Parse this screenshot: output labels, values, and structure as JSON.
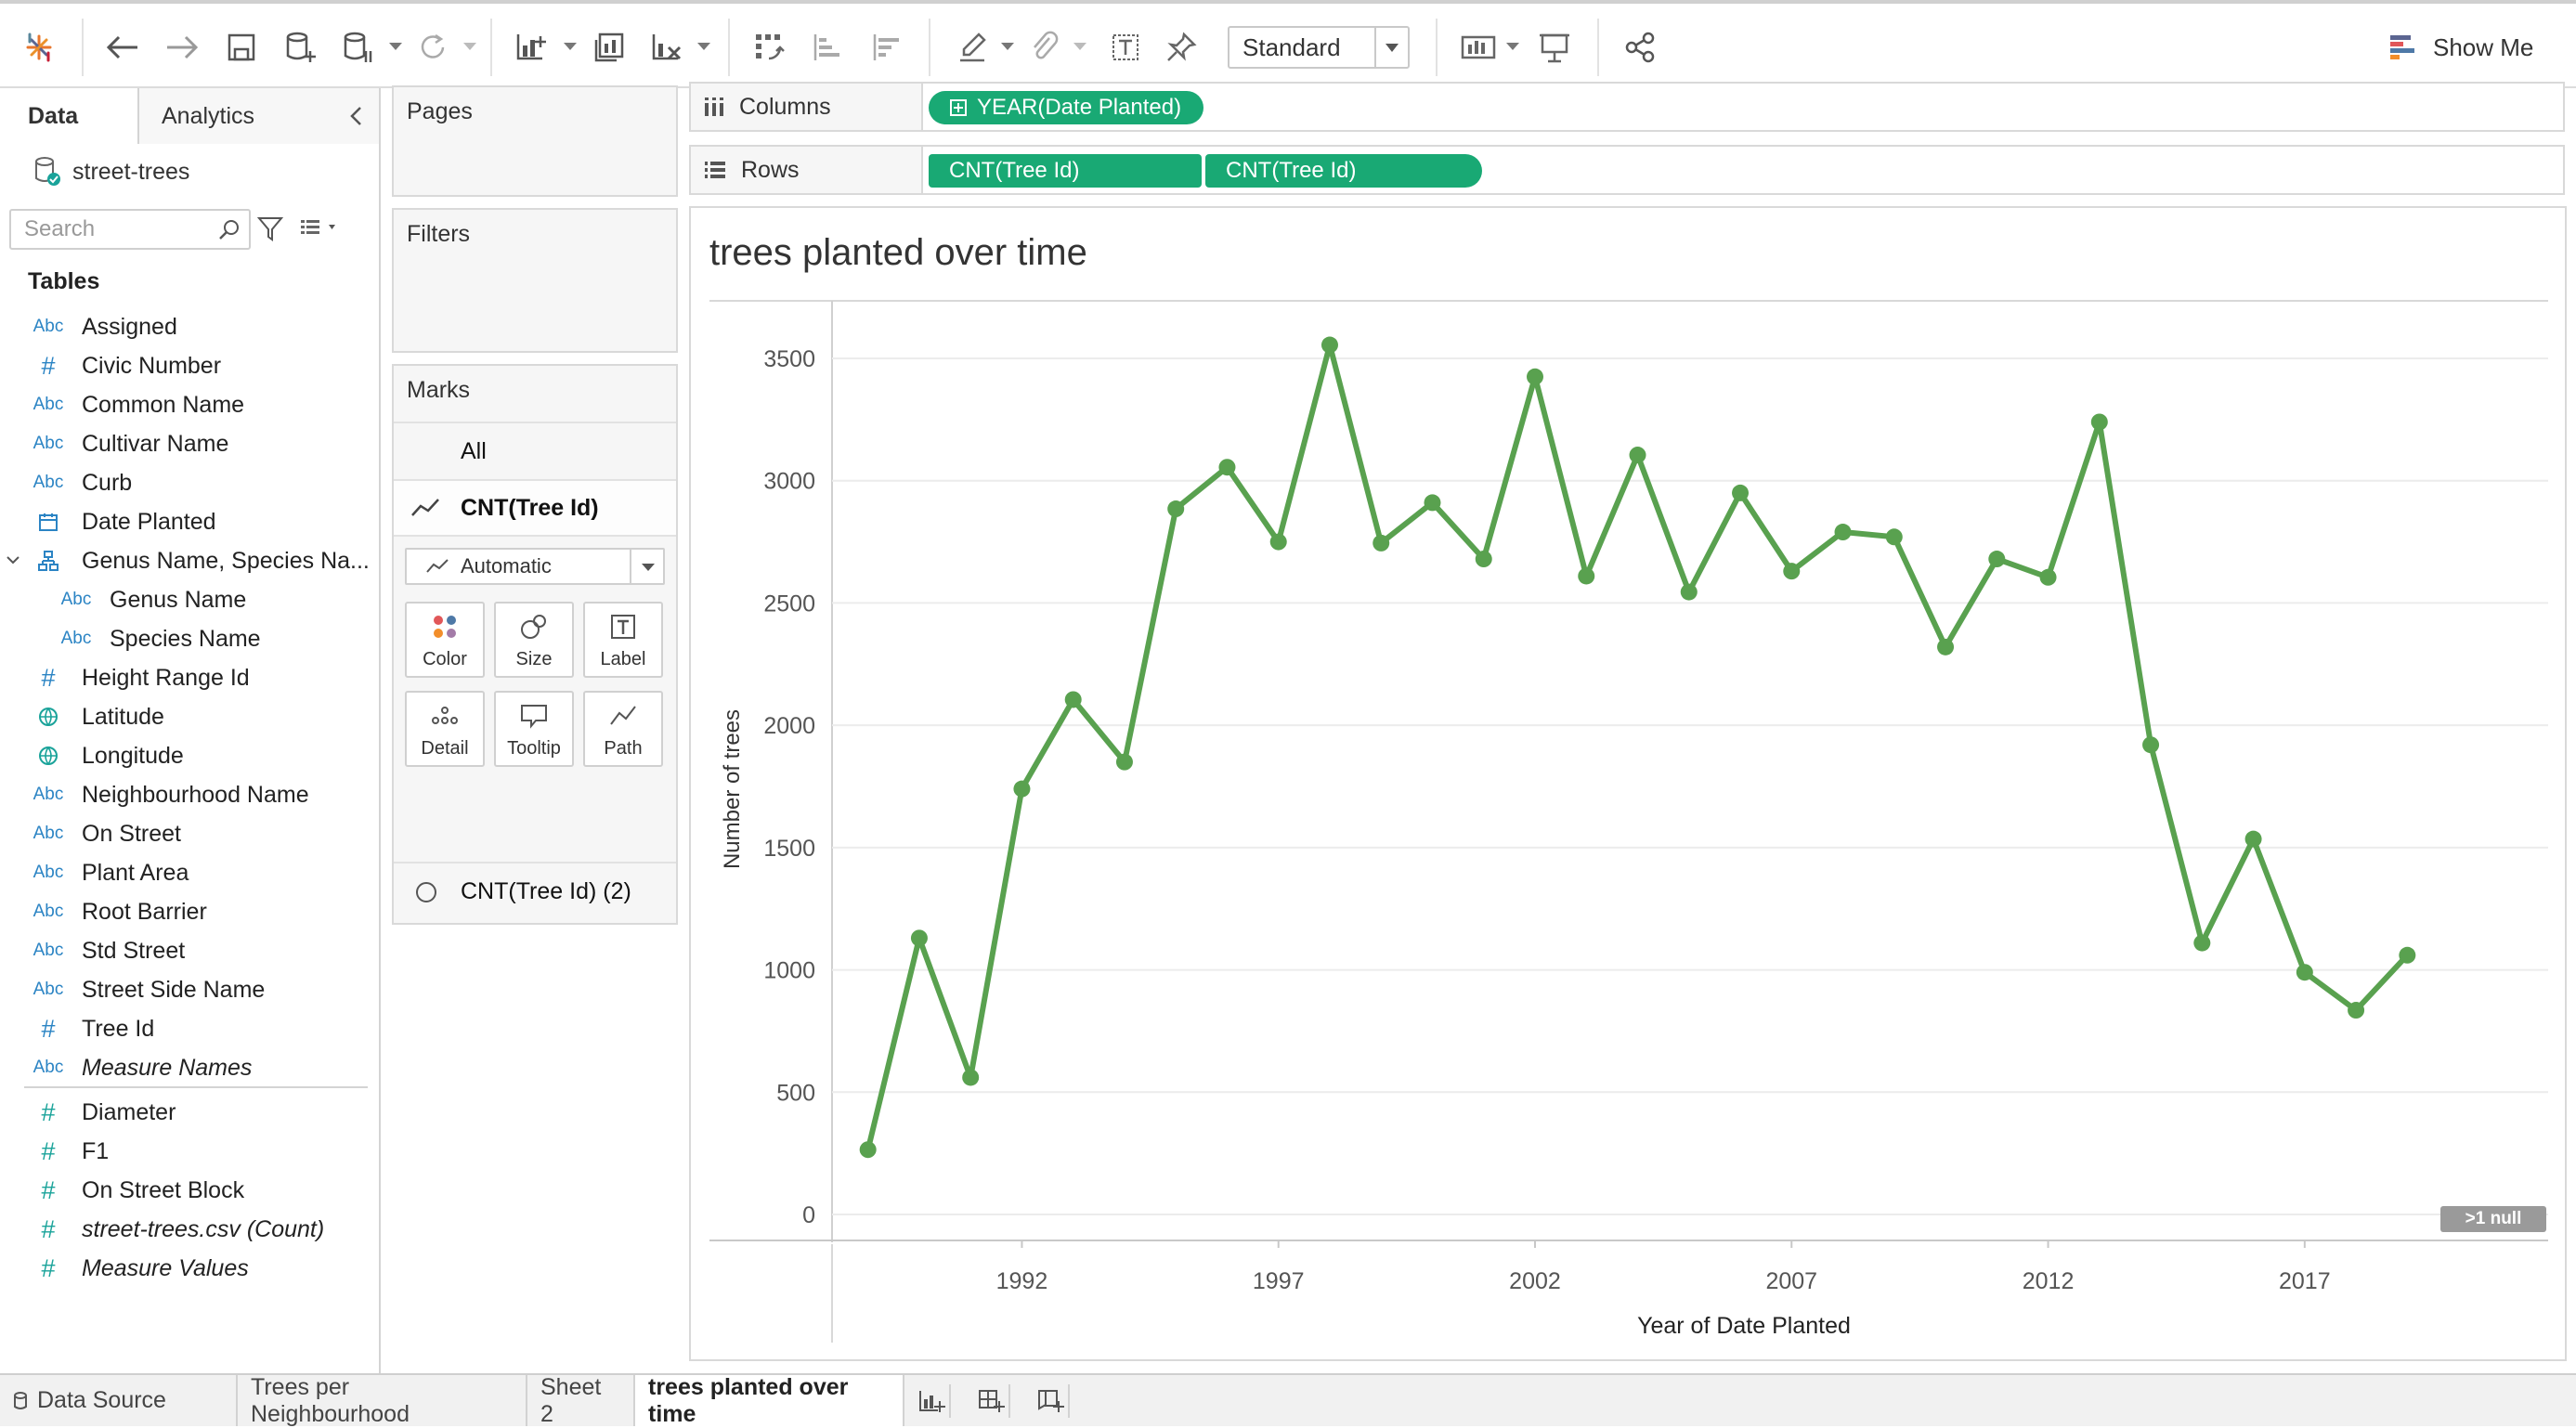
{
  "toolbar": {
    "view_size": "Standard",
    "show_me": "Show Me"
  },
  "data_pane": {
    "tabs": [
      "Data",
      "Analytics"
    ],
    "datasource": "street-trees",
    "search_placeholder": "Search",
    "tables_header": "Tables",
    "fields": [
      {
        "type": "Abc",
        "name": "Assigned"
      },
      {
        "type": "#",
        "name": "Civic Number"
      },
      {
        "type": "Abc",
        "name": "Common Name"
      },
      {
        "type": "Abc",
        "name": "Cultivar Name"
      },
      {
        "type": "Abc",
        "name": "Curb"
      },
      {
        "type": "date",
        "name": "Date Planted"
      },
      {
        "type": "hier",
        "name": "Genus Name, Species Na..."
      },
      {
        "type": "Abc",
        "name": "Genus Name"
      },
      {
        "type": "Abc",
        "name": "Species Name"
      },
      {
        "type": "#",
        "name": "Height Range Id"
      },
      {
        "type": "geo",
        "name": "Latitude"
      },
      {
        "type": "geo",
        "name": "Longitude"
      },
      {
        "type": "Abc",
        "name": "Neighbourhood Name"
      },
      {
        "type": "Abc",
        "name": "On Street"
      },
      {
        "type": "Abc",
        "name": "Plant Area"
      },
      {
        "type": "Abc",
        "name": "Root Barrier"
      },
      {
        "type": "Abc",
        "name": "Std Street"
      },
      {
        "type": "Abc",
        "name": "Street Side Name"
      },
      {
        "type": "#",
        "name": "Tree Id"
      },
      {
        "type": "Abc",
        "name": "Measure Names"
      }
    ],
    "measures": [
      {
        "type": "#",
        "name": "Diameter"
      },
      {
        "type": "#",
        "name": "F1"
      },
      {
        "type": "#",
        "name": "On Street Block"
      },
      {
        "type": "#",
        "name": "street-trees.csv (Count)"
      },
      {
        "type": "#",
        "name": "Measure Values"
      }
    ]
  },
  "cards": {
    "pages": "Pages",
    "filters": "Filters",
    "marks": "Marks",
    "marks_all": "All",
    "marks_measure": "CNT(Tree Id)",
    "mark_type": "Automatic",
    "buttons": [
      "Color",
      "Size",
      "Label",
      "Detail",
      "Tooltip",
      "Path"
    ],
    "marks_measure2": "CNT(Tree Id) (2)"
  },
  "shelves": {
    "columns_label": "Columns",
    "rows_label": "Rows",
    "columns_pill": "YEAR(Date Planted)",
    "rows_pills": [
      "CNT(Tree Id)",
      "CNT(Tree Id)"
    ]
  },
  "chart_data": {
    "type": "line",
    "title": "trees planted over time",
    "xlabel": "Year of Date Planted",
    "ylabel": "Number of trees",
    "x_ticks": [
      1992,
      1997,
      2002,
      2007,
      2012,
      2017
    ],
    "y_ticks": [
      0,
      500,
      1000,
      1500,
      2000,
      2500,
      3000,
      3500
    ],
    "ylim": [
      0,
      3500
    ],
    "xlim": [
      1988.3,
      2021.6
    ],
    "line_color": "#59a14f",
    "grid": true,
    "null_indicator": ">1 null",
    "x": [
      1989,
      1990,
      1991,
      1992,
      1993,
      1994,
      1995,
      1996,
      1997,
      1998,
      1999,
      2000,
      2001,
      2002,
      2003,
      2004,
      2005,
      2006,
      2007,
      2008,
      2009,
      2010,
      2011,
      2012,
      2013,
      2014,
      2015,
      2016,
      2017,
      2018,
      2019
    ],
    "values": [
      265,
      1130,
      560,
      1740,
      2105,
      1850,
      2885,
      3055,
      2750,
      3555,
      2745,
      2910,
      2680,
      3425,
      2610,
      3105,
      2545,
      2950,
      2630,
      2790,
      2770,
      2320,
      2680,
      2605,
      3240,
      1920,
      1110,
      1535,
      990,
      835,
      1060
    ]
  },
  "bottom_tabs": {
    "datasource": "Data Source",
    "sheets": [
      "Trees per Neighbourhood",
      "Sheet 2",
      "trees planted over time"
    ]
  }
}
